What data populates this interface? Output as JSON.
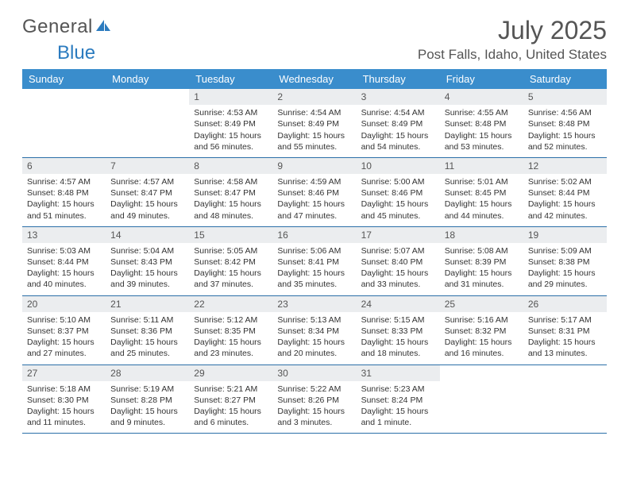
{
  "brand": {
    "part1": "General",
    "part2": "Blue"
  },
  "title": "July 2025",
  "location": "Post Falls, Idaho, United States",
  "colors": {
    "header_bg": "#3a8dcc",
    "header_text": "#ffffff",
    "daynum_bg": "#ebedef",
    "row_border": "#2b6fa8",
    "text": "#333333",
    "title_text": "#555555",
    "brand_blue": "#2b7bbf"
  },
  "weekdays": [
    "Sunday",
    "Monday",
    "Tuesday",
    "Wednesday",
    "Thursday",
    "Friday",
    "Saturday"
  ],
  "weeks": [
    [
      null,
      null,
      {
        "n": "1",
        "sunrise": "4:53 AM",
        "sunset": "8:49 PM",
        "daylight": "15 hours and 56 minutes."
      },
      {
        "n": "2",
        "sunrise": "4:54 AM",
        "sunset": "8:49 PM",
        "daylight": "15 hours and 55 minutes."
      },
      {
        "n": "3",
        "sunrise": "4:54 AM",
        "sunset": "8:49 PM",
        "daylight": "15 hours and 54 minutes."
      },
      {
        "n": "4",
        "sunrise": "4:55 AM",
        "sunset": "8:48 PM",
        "daylight": "15 hours and 53 minutes."
      },
      {
        "n": "5",
        "sunrise": "4:56 AM",
        "sunset": "8:48 PM",
        "daylight": "15 hours and 52 minutes."
      }
    ],
    [
      {
        "n": "6",
        "sunrise": "4:57 AM",
        "sunset": "8:48 PM",
        "daylight": "15 hours and 51 minutes."
      },
      {
        "n": "7",
        "sunrise": "4:57 AM",
        "sunset": "8:47 PM",
        "daylight": "15 hours and 49 minutes."
      },
      {
        "n": "8",
        "sunrise": "4:58 AM",
        "sunset": "8:47 PM",
        "daylight": "15 hours and 48 minutes."
      },
      {
        "n": "9",
        "sunrise": "4:59 AM",
        "sunset": "8:46 PM",
        "daylight": "15 hours and 47 minutes."
      },
      {
        "n": "10",
        "sunrise": "5:00 AM",
        "sunset": "8:46 PM",
        "daylight": "15 hours and 45 minutes."
      },
      {
        "n": "11",
        "sunrise": "5:01 AM",
        "sunset": "8:45 PM",
        "daylight": "15 hours and 44 minutes."
      },
      {
        "n": "12",
        "sunrise": "5:02 AM",
        "sunset": "8:44 PM",
        "daylight": "15 hours and 42 minutes."
      }
    ],
    [
      {
        "n": "13",
        "sunrise": "5:03 AM",
        "sunset": "8:44 PM",
        "daylight": "15 hours and 40 minutes."
      },
      {
        "n": "14",
        "sunrise": "5:04 AM",
        "sunset": "8:43 PM",
        "daylight": "15 hours and 39 minutes."
      },
      {
        "n": "15",
        "sunrise": "5:05 AM",
        "sunset": "8:42 PM",
        "daylight": "15 hours and 37 minutes."
      },
      {
        "n": "16",
        "sunrise": "5:06 AM",
        "sunset": "8:41 PM",
        "daylight": "15 hours and 35 minutes."
      },
      {
        "n": "17",
        "sunrise": "5:07 AM",
        "sunset": "8:40 PM",
        "daylight": "15 hours and 33 minutes."
      },
      {
        "n": "18",
        "sunrise": "5:08 AM",
        "sunset": "8:39 PM",
        "daylight": "15 hours and 31 minutes."
      },
      {
        "n": "19",
        "sunrise": "5:09 AM",
        "sunset": "8:38 PM",
        "daylight": "15 hours and 29 minutes."
      }
    ],
    [
      {
        "n": "20",
        "sunrise": "5:10 AM",
        "sunset": "8:37 PM",
        "daylight": "15 hours and 27 minutes."
      },
      {
        "n": "21",
        "sunrise": "5:11 AM",
        "sunset": "8:36 PM",
        "daylight": "15 hours and 25 minutes."
      },
      {
        "n": "22",
        "sunrise": "5:12 AM",
        "sunset": "8:35 PM",
        "daylight": "15 hours and 23 minutes."
      },
      {
        "n": "23",
        "sunrise": "5:13 AM",
        "sunset": "8:34 PM",
        "daylight": "15 hours and 20 minutes."
      },
      {
        "n": "24",
        "sunrise": "5:15 AM",
        "sunset": "8:33 PM",
        "daylight": "15 hours and 18 minutes."
      },
      {
        "n": "25",
        "sunrise": "5:16 AM",
        "sunset": "8:32 PM",
        "daylight": "15 hours and 16 minutes."
      },
      {
        "n": "26",
        "sunrise": "5:17 AM",
        "sunset": "8:31 PM",
        "daylight": "15 hours and 13 minutes."
      }
    ],
    [
      {
        "n": "27",
        "sunrise": "5:18 AM",
        "sunset": "8:30 PM",
        "daylight": "15 hours and 11 minutes."
      },
      {
        "n": "28",
        "sunrise": "5:19 AM",
        "sunset": "8:28 PM",
        "daylight": "15 hours and 9 minutes."
      },
      {
        "n": "29",
        "sunrise": "5:21 AM",
        "sunset": "8:27 PM",
        "daylight": "15 hours and 6 minutes."
      },
      {
        "n": "30",
        "sunrise": "5:22 AM",
        "sunset": "8:26 PM",
        "daylight": "15 hours and 3 minutes."
      },
      {
        "n": "31",
        "sunrise": "5:23 AM",
        "sunset": "8:24 PM",
        "daylight": "15 hours and 1 minute."
      },
      null,
      null
    ]
  ],
  "labels": {
    "sunrise": "Sunrise:",
    "sunset": "Sunset:",
    "daylight": "Daylight:"
  }
}
